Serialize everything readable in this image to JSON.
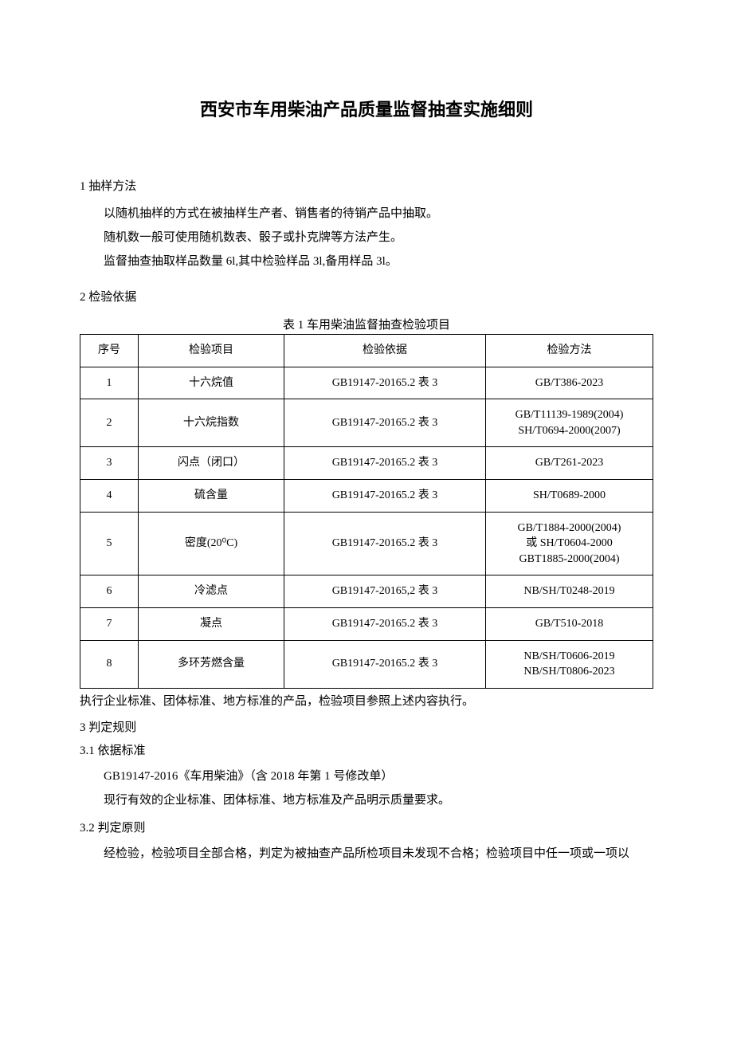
{
  "title": "西安市车用柴油产品质量监督抽查实施细则",
  "section1": {
    "heading": "1 抽样方法",
    "p1": "以随机抽样的方式在被抽样生产者、销售者的待销产品中抽取。",
    "p2": "随机数一般可使用随机数表、骰子或扑克牌等方法产生。",
    "p3": "监督抽查抽取样品数量 6l,其中检验样品 3l,备用样品 3l。"
  },
  "section2": {
    "heading": "2 检验依据",
    "tableCaption": "表 1 车用柴油监督抽查检验项目",
    "headers": {
      "seq": "序号",
      "item": "检验项目",
      "basis": "检验依据",
      "method": "检验方法"
    },
    "rows": [
      {
        "seq": "1",
        "item": "十六烷值",
        "basis": "GB19147-20165.2 表 3",
        "method": "GB/T386-2023"
      },
      {
        "seq": "2",
        "item": "十六烷指数",
        "basis": "GB19147-20165.2 表 3",
        "method": "GB/T11139-1989(2004)\nSH/T0694-2000(2007)"
      },
      {
        "seq": "3",
        "item": "闪点（闭口）",
        "basis": "GB19147-20165.2 表 3",
        "method": "GB/T261-2023"
      },
      {
        "seq": "4",
        "item": "硫含量",
        "basis": "GB19147-20165.2 表 3",
        "method": "SH/T0689-2000"
      },
      {
        "seq": "5",
        "item": "密度(20⁰C)",
        "basis": "GB19147-20165.2 表 3",
        "method": "GB/T1884-2000(2004)\n或 SH/T0604-2000\nGBT1885-2000(2004)"
      },
      {
        "seq": "6",
        "item": "冷滤点",
        "basis": "GB19147-20165,2 表 3",
        "method": "NB/SH/T0248-2019"
      },
      {
        "seq": "7",
        "item": "凝点",
        "basis": "GB19147-20165.2 表 3",
        "method": "GB/T510-2018"
      },
      {
        "seq": "8",
        "item": "多环芳燃含量",
        "basis": "GB19147-20165.2 表 3",
        "method": "NB/SH/T0606-2019\nNB/SH/T0806-2023"
      }
    ],
    "afterTable": "执行企业标准、团体标准、地方标准的产品，检验项目参照上述内容执行。"
  },
  "section3": {
    "heading": "3 判定规则",
    "sub31": {
      "heading": "3.1 依据标准",
      "p1": "GB19147-2016《车用柴油》（含 2018 年第 1 号修改单）",
      "p2": "现行有效的企业标准、团体标准、地方标准及产品明示质量要求。"
    },
    "sub32": {
      "heading": "3.2 判定原则",
      "p1": "经检验，检验项目全部合格，判定为被抽查产品所检项目未发现不合格；检验项目中任一项或一项以"
    }
  }
}
